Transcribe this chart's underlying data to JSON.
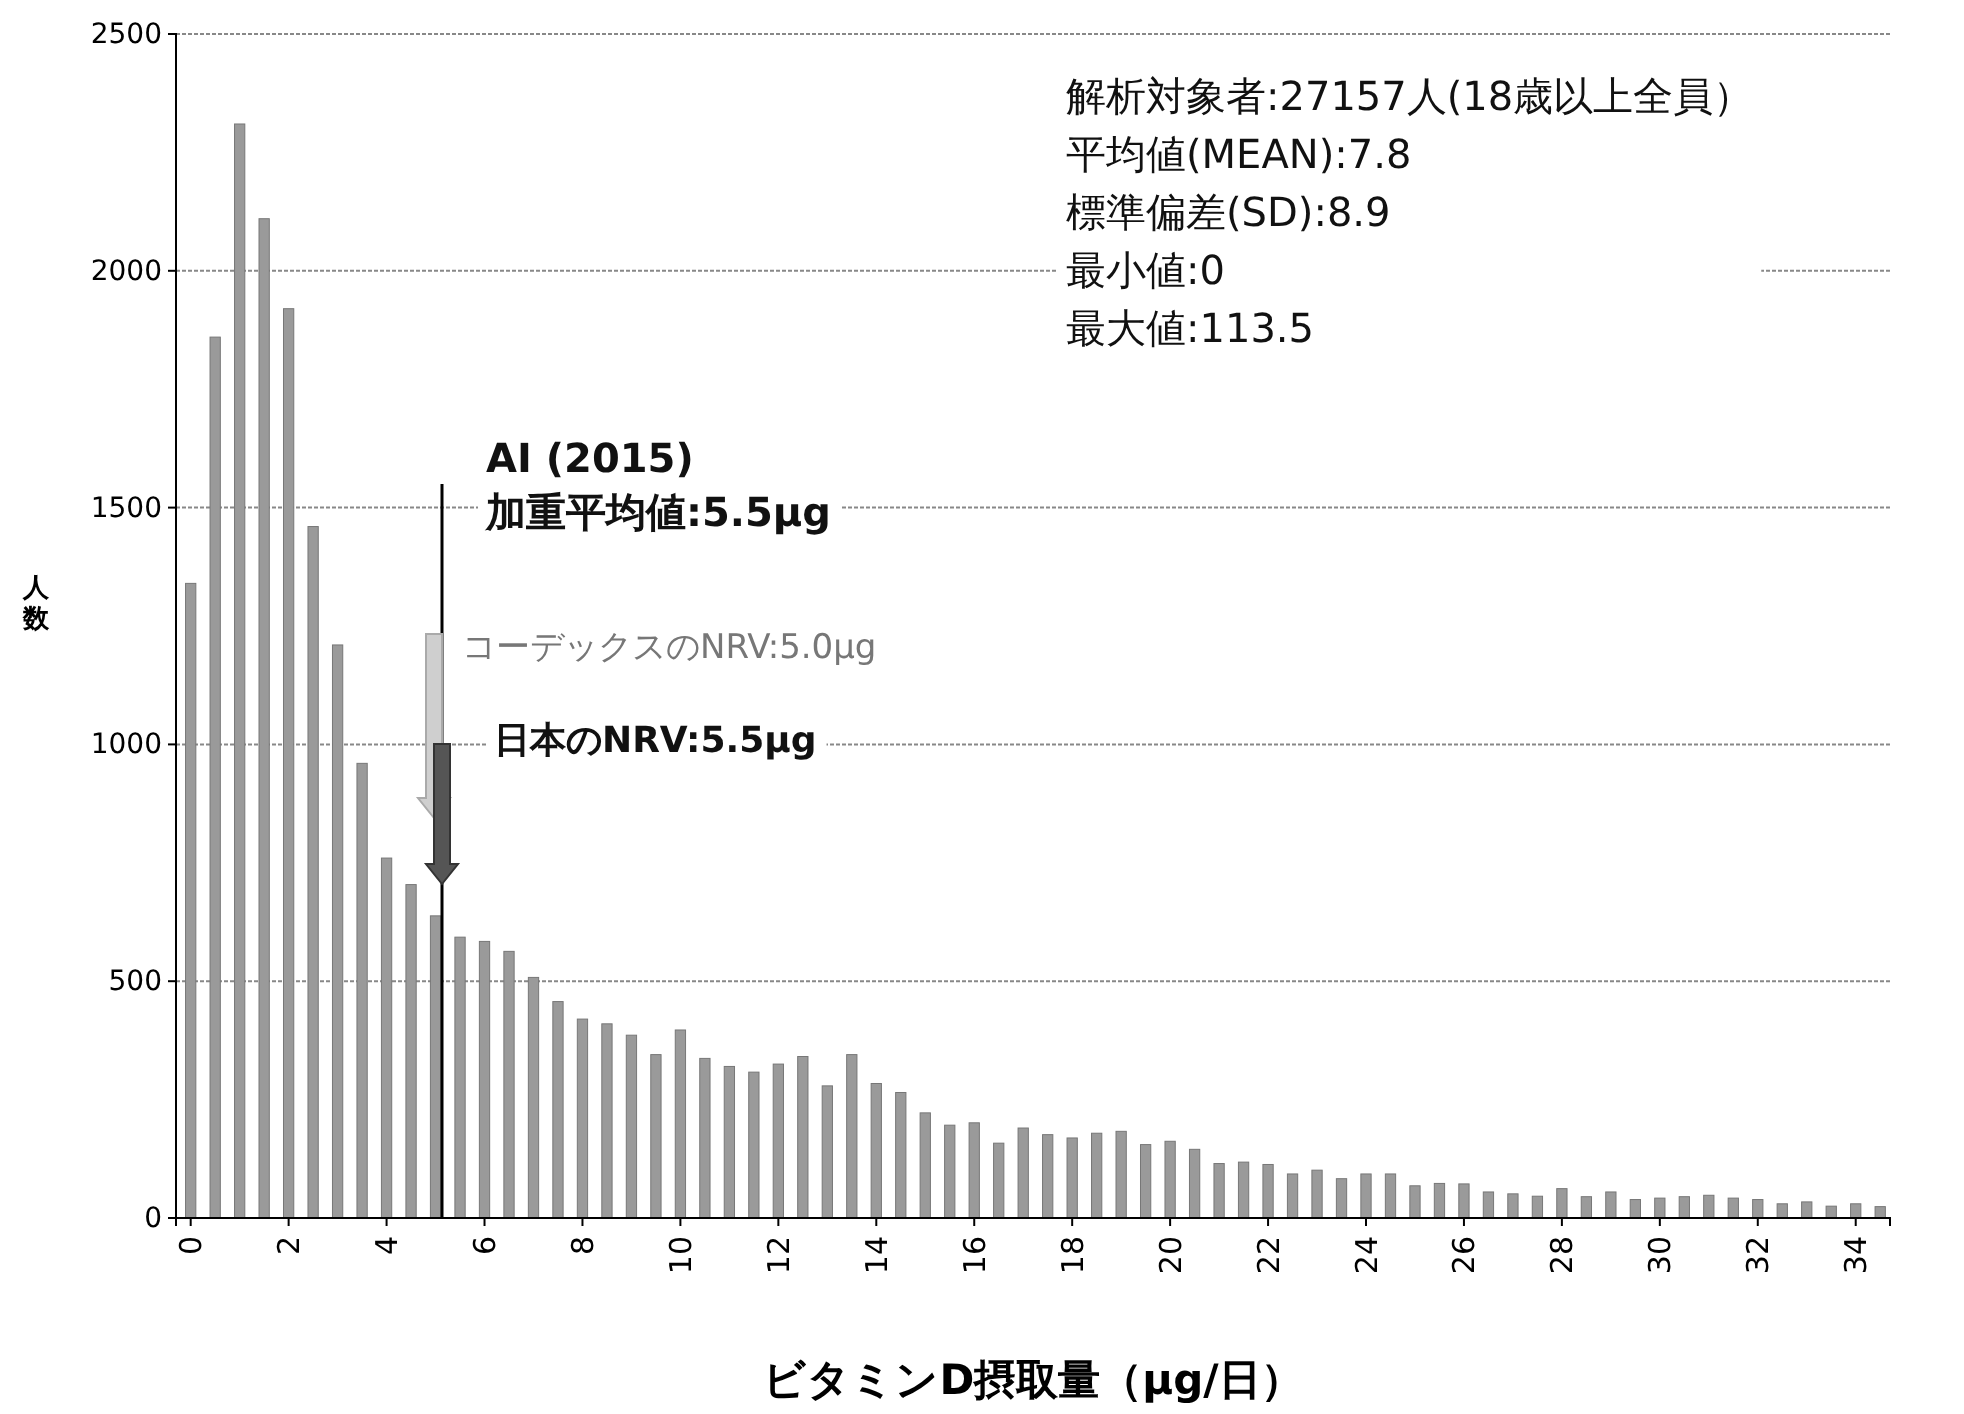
{
  "chart_data": {
    "type": "bar",
    "xlabel": "ビタミンD摂取量（μg/日）",
    "ylabel": "人数",
    "x": [
      0,
      0.5,
      1,
      1.5,
      2,
      2.5,
      3,
      3.5,
      4,
      4.5,
      5,
      5.5,
      6,
      6.5,
      7,
      7.5,
      8,
      8.5,
      9,
      9.5,
      10,
      10.5,
      11,
      11.5,
      12,
      12.5,
      13,
      13.5,
      14,
      14.5,
      15,
      15.5,
      16,
      16.5,
      17,
      17.5,
      18,
      18.5,
      19,
      19.5,
      20,
      20.5,
      21,
      21.5,
      22,
      22.5,
      23,
      23.5,
      24,
      24.5,
      25,
      25.5,
      26,
      26.5,
      27,
      27.5,
      28,
      28.5,
      29,
      29.5,
      30,
      30.5,
      31,
      31.5,
      32,
      32.5,
      33,
      33.5,
      34,
      34.5
    ],
    "values": [
      1340,
      1860,
      2310,
      2110,
      1920,
      1460,
      1210,
      960,
      760,
      704,
      638,
      593,
      584,
      563,
      508,
      457,
      420,
      410,
      386,
      345,
      397,
      337,
      320,
      308,
      325,
      341,
      279,
      345,
      284,
      265,
      222,
      196,
      201,
      158,
      190,
      176,
      169,
      179,
      183,
      155,
      162,
      145,
      115,
      118,
      113,
      93,
      101,
      83,
      93,
      93,
      68,
      73,
      72,
      55,
      51,
      46,
      62,
      45,
      55,
      39,
      42,
      45,
      48,
      42,
      39,
      30,
      34,
      25,
      30,
      24
    ],
    "color": "#9a9a9a",
    "xlim": [
      -0.3,
      34.7
    ],
    "xticks": [
      0,
      2,
      4,
      6,
      8,
      10,
      12,
      14,
      16,
      18,
      20,
      22,
      24,
      26,
      28,
      30,
      32,
      34
    ],
    "ylim": [
      0,
      2500
    ],
    "yticks": [
      0,
      500,
      1000,
      1500,
      2000,
      2500
    ],
    "grid": "y",
    "annotations": [
      "AI (2015)\n加重平均値:5.5μg",
      "コーデックスのNRV:5.0μg",
      "日本のNRV:5.5μg",
      "解析対象者:27157人(18歳以上全員）",
      "平均値(MEAN):7.8",
      "標準偏差(SD):8.9",
      "最小値:0",
      "最大値:113.5"
    ]
  }
}
